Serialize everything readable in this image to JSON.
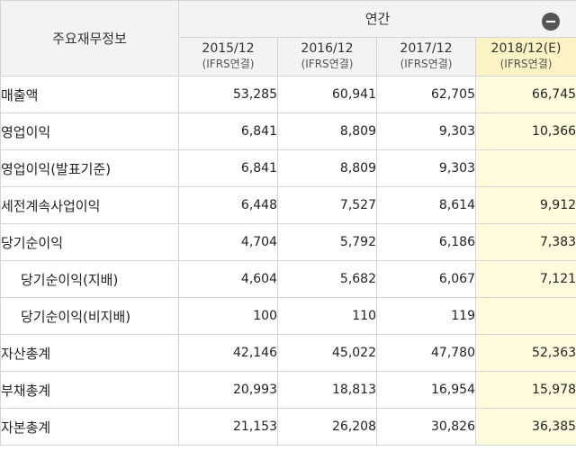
{
  "table": {
    "row_header_label": "주요재무정보",
    "group_label": "연간",
    "group_toggle_icon": "minus-circle-icon",
    "periods": [
      {
        "year": "2015/12",
        "basis": "(IFRS연결)",
        "estimate": false
      },
      {
        "year": "2016/12",
        "basis": "(IFRS연결)",
        "estimate": false
      },
      {
        "year": "2017/12",
        "basis": "(IFRS연결)",
        "estimate": false
      },
      {
        "year": "2018/12(E)",
        "basis": "(IFRS연결)",
        "estimate": true
      }
    ],
    "rows": [
      {
        "label": "매출액",
        "indent": false,
        "values": [
          "53,285",
          "60,941",
          "62,705",
          "66,745"
        ]
      },
      {
        "label": "영업이익",
        "indent": false,
        "values": [
          "6,841",
          "8,809",
          "9,303",
          "10,366"
        ]
      },
      {
        "label": "영업이익(발표기준)",
        "indent": false,
        "values": [
          "6,841",
          "8,809",
          "9,303",
          ""
        ]
      },
      {
        "label": "세전계속사업이익",
        "indent": false,
        "values": [
          "6,448",
          "7,527",
          "8,614",
          "9,912"
        ]
      },
      {
        "label": "당기순이익",
        "indent": false,
        "values": [
          "4,704",
          "5,792",
          "6,186",
          "7,383"
        ]
      },
      {
        "label": "당기순이익(지배)",
        "indent": true,
        "values": [
          "4,604",
          "5,682",
          "6,067",
          "7,121"
        ]
      },
      {
        "label": "당기순이익(비지배)",
        "indent": true,
        "values": [
          "100",
          "110",
          "119",
          ""
        ]
      },
      {
        "label": "자산총계",
        "indent": false,
        "values": [
          "42,146",
          "45,022",
          "47,780",
          "52,363"
        ]
      },
      {
        "label": "부채총계",
        "indent": false,
        "values": [
          "20,993",
          "18,813",
          "16,954",
          "15,978"
        ]
      },
      {
        "label": "자본총계",
        "indent": false,
        "values": [
          "21,153",
          "26,208",
          "30,826",
          "36,385"
        ]
      }
    ]
  },
  "colors": {
    "header_bg": "#f3f3f3",
    "estimate_header_bg": "#fbf3c4",
    "estimate_cell_bg": "#fffbdc",
    "grid_line": "#d4d4d4"
  }
}
